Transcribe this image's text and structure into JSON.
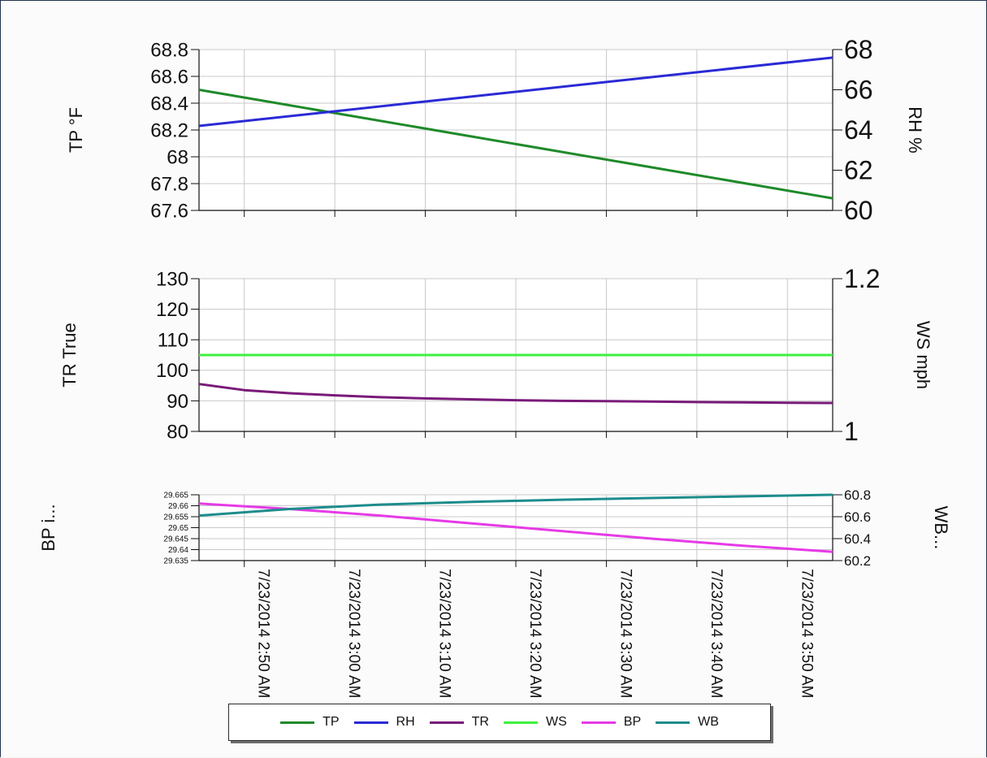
{
  "colors": {
    "TP": "#1f8a2a",
    "RH": "#2a2ad6",
    "TR": "#7a1a7a",
    "WS": "#3ef03e",
    "BP": "#e63ae6",
    "WB": "#1e8c8c",
    "grid": "#c8c8c8",
    "axis": "#111111"
  },
  "chart_data": [
    {
      "type": "line",
      "left_axis": {
        "label": "TP °F",
        "ticks": [
          "67.6",
          "67.8",
          "68",
          "68.2",
          "68.4",
          "68.6",
          "68.8"
        ],
        "ylim": [
          67.6,
          68.8
        ]
      },
      "right_axis": {
        "label": "RH %",
        "ticks": [
          "60",
          "62",
          "64",
          "66",
          "68"
        ],
        "ylim": [
          60,
          68
        ]
      },
      "xlim_minutes": [
        45,
        115
      ],
      "series": [
        {
          "name": "TP",
          "axis": "left",
          "x": [
            45,
            115
          ],
          "values": [
            68.5,
            67.69
          ]
        },
        {
          "name": "RH",
          "axis": "right",
          "x": [
            45,
            115
          ],
          "values": [
            64.2,
            67.6
          ]
        }
      ]
    },
    {
      "type": "line",
      "left_axis": {
        "label": "TR True",
        "ticks": [
          "80",
          "90",
          "100",
          "110",
          "120",
          "130"
        ],
        "ylim": [
          80,
          130
        ]
      },
      "right_axis": {
        "label": "WS mph",
        "ticks": [
          "1",
          "1.2"
        ],
        "ylim": [
          1,
          1.2
        ]
      },
      "xlim_minutes": [
        45,
        115
      ],
      "series": [
        {
          "name": "TR",
          "axis": "left",
          "x": [
            45,
            50,
            55,
            60,
            65,
            70,
            75,
            80,
            85,
            90,
            95,
            100,
            105,
            110,
            115
          ],
          "values": [
            95.5,
            93.5,
            92.5,
            91.8,
            91.2,
            90.8,
            90.5,
            90.2,
            90.0,
            89.9,
            89.8,
            89.6,
            89.5,
            89.4,
            89.3
          ]
        },
        {
          "name": "WS",
          "axis": "right",
          "x": [
            45,
            115
          ],
          "values": [
            1.1,
            1.1
          ]
        }
      ]
    },
    {
      "type": "line",
      "left_axis": {
        "label": "BP i...",
        "ticks": [
          "29.635",
          "29.64",
          "29.645",
          "29.65",
          "29.655",
          "29.66",
          "29.665"
        ],
        "ylim": [
          29.635,
          29.665
        ]
      },
      "right_axis": {
        "label": "WB...",
        "ticks": [
          "60.2",
          "60.4",
          "60.6",
          "60.8"
        ],
        "ylim": [
          60.2,
          60.8
        ]
      },
      "xlim_minutes": [
        45,
        115
      ],
      "series": [
        {
          "name": "BP",
          "axis": "left",
          "x": [
            45,
            55,
            65,
            75,
            85,
            95,
            105,
            115
          ],
          "values": [
            29.661,
            29.6585,
            29.6555,
            29.652,
            29.6485,
            29.645,
            29.6418,
            29.639
          ]
        },
        {
          "name": "WB",
          "axis": "right",
          "x": [
            45,
            55,
            65,
            75,
            85,
            95,
            105,
            115
          ],
          "values": [
            60.61,
            60.67,
            60.71,
            60.735,
            60.755,
            60.77,
            60.785,
            60.8
          ]
        }
      ]
    }
  ],
  "x_axis": {
    "ticks": [
      {
        "minutes": 50,
        "label": "7/23/2014 2:50 AM"
      },
      {
        "minutes": 60,
        "label": "7/23/2014 3:00 AM"
      },
      {
        "minutes": 70,
        "label": "7/23/2014 3:10 AM"
      },
      {
        "minutes": 80,
        "label": "7/23/2014 3:20 AM"
      },
      {
        "minutes": 90,
        "label": "7/23/2014 3:30 AM"
      },
      {
        "minutes": 100,
        "label": "7/23/2014 3:40 AM"
      },
      {
        "minutes": 110,
        "label": "7/23/2014 3:50 AM"
      }
    ]
  },
  "legend": [
    {
      "name": "TP"
    },
    {
      "name": "RH"
    },
    {
      "name": "TR"
    },
    {
      "name": "WS"
    },
    {
      "name": "BP"
    },
    {
      "name": "WB"
    }
  ]
}
